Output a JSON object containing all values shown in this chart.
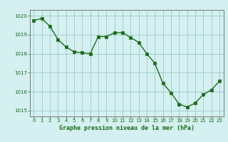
{
  "x": [
    0,
    1,
    2,
    3,
    4,
    5,
    6,
    7,
    8,
    9,
    10,
    11,
    12,
    13,
    14,
    15,
    16,
    17,
    18,
    19,
    20,
    21,
    22,
    23
  ],
  "y": [
    1019.75,
    1019.85,
    1019.45,
    1018.75,
    1018.35,
    1018.1,
    1018.05,
    1018.0,
    1018.9,
    1018.9,
    1019.1,
    1019.1,
    1018.85,
    1018.6,
    1018.0,
    1017.5,
    1016.45,
    1015.95,
    1015.35,
    1015.2,
    1015.4,
    1015.85,
    1016.1,
    1016.55
  ],
  "xlabel": "Graphe pression niveau de la mer (hPa)",
  "ylim": [
    1014.7,
    1020.3
  ],
  "xlim": [
    -0.5,
    23.5
  ],
  "yticks": [
    1015,
    1016,
    1017,
    1018,
    1019,
    1020
  ],
  "xticks": [
    0,
    1,
    2,
    3,
    4,
    5,
    6,
    7,
    8,
    9,
    10,
    11,
    12,
    13,
    14,
    15,
    16,
    17,
    18,
    19,
    20,
    21,
    22,
    23
  ],
  "line_color": "#1a6b1a",
  "marker_color": "#1a6b1a",
  "bg_color": "#d4f0f0",
  "grid_color": "#a0c8c8",
  "axis_color": "#666666",
  "xlabel_color": "#1a6b1a",
  "tick_label_color": "#1a6b1a"
}
